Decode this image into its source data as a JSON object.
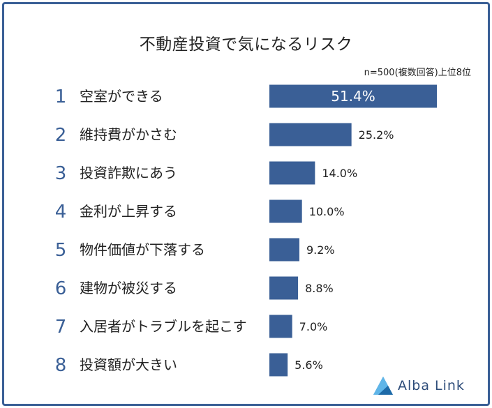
{
  "chart_data": {
    "type": "bar",
    "orientation": "horizontal",
    "title": "不動産投資で気になるリスク",
    "note": "n=500(複数回答)上位8位",
    "ranks": [
      "1",
      "2",
      "3",
      "4",
      "5",
      "6",
      "7",
      "8"
    ],
    "categories": [
      "空室ができる",
      "維持費がかさむ",
      "投資詐欺にあう",
      "金利が上昇する",
      "物件価値が下落する",
      "建物が被災する",
      "入居者がトラブルを起こす",
      "投資額が大きい"
    ],
    "values": [
      51.4,
      25.2,
      14.0,
      10.0,
      9.2,
      8.8,
      7.0,
      5.6
    ],
    "value_labels": [
      "51.4%",
      "25.2%",
      "14.0%",
      "10.0%",
      "9.2%",
      "8.8%",
      "7.0%",
      "5.6%"
    ],
    "unit": "%",
    "bar_color": "#3a5f96",
    "grid": false,
    "legend": "none"
  },
  "logo": {
    "text": "Alba Link",
    "icon": "alba-link-logo-icon"
  },
  "colors": {
    "frame": "#3a5f96",
    "accent": "#3a5f96",
    "text": "#222222"
  }
}
